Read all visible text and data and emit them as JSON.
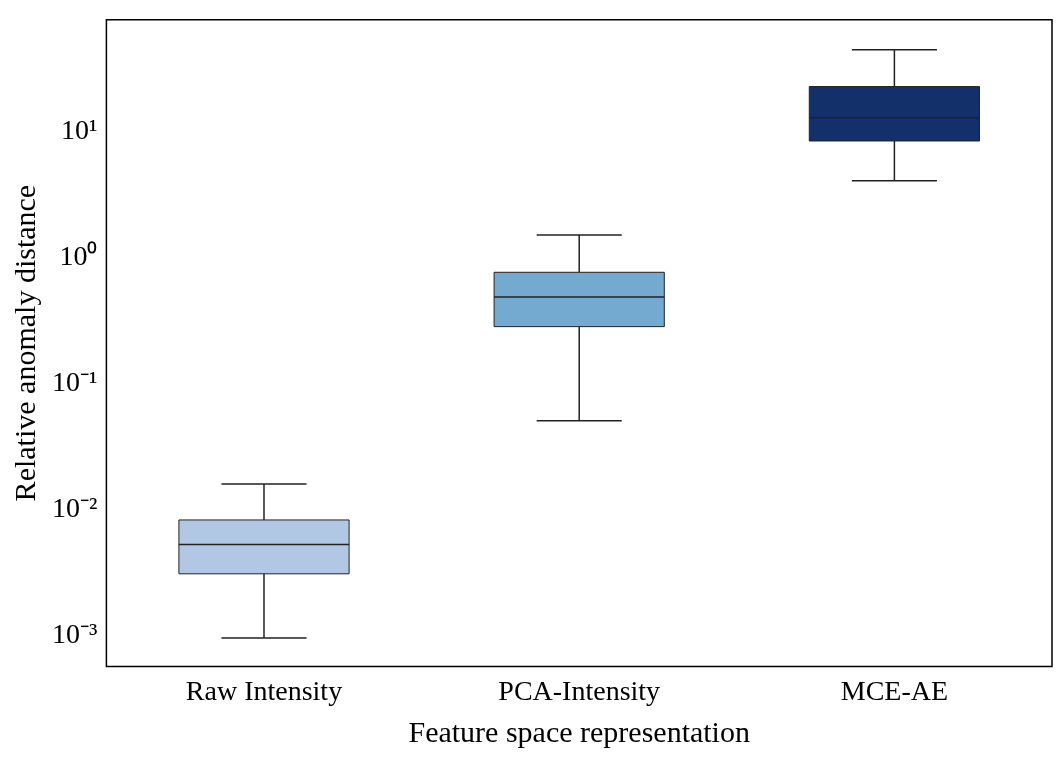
{
  "chart_data": {
    "type": "box",
    "xlabel": "Feature space representation",
    "ylabel": "Relative anomaly distance",
    "categories": [
      "Raw Intensity",
      "PCA-Intensity",
      "MCE-AE"
    ],
    "colors": [
      "#b0c8e4",
      "#74a9d0",
      "#13306a"
    ],
    "boxes": [
      {
        "low": 0.00096,
        "q1": 0.0031,
        "median": 0.0053,
        "q3": 0.0083,
        "high": 0.016
      },
      {
        "low": 0.051,
        "q1": 0.285,
        "median": 0.49,
        "q3": 0.77,
        "high": 1.52
      },
      {
        "low": 4.1,
        "q1": 8.5,
        "median": 13,
        "q3": 23,
        "high": 45
      }
    ],
    "log": "y",
    "ylim": [
      0.00057,
      78
    ],
    "yticks": [
      {
        "value": 0.001,
        "label": "10⁻³"
      },
      {
        "value": 0.01,
        "label": "10⁻²"
      },
      {
        "value": 0.1,
        "label": "10⁻¹"
      },
      {
        "value": 1,
        "label": "10⁰"
      },
      {
        "value": 10,
        "label": "10¹"
      }
    ],
    "grid": false,
    "legend": false
  }
}
